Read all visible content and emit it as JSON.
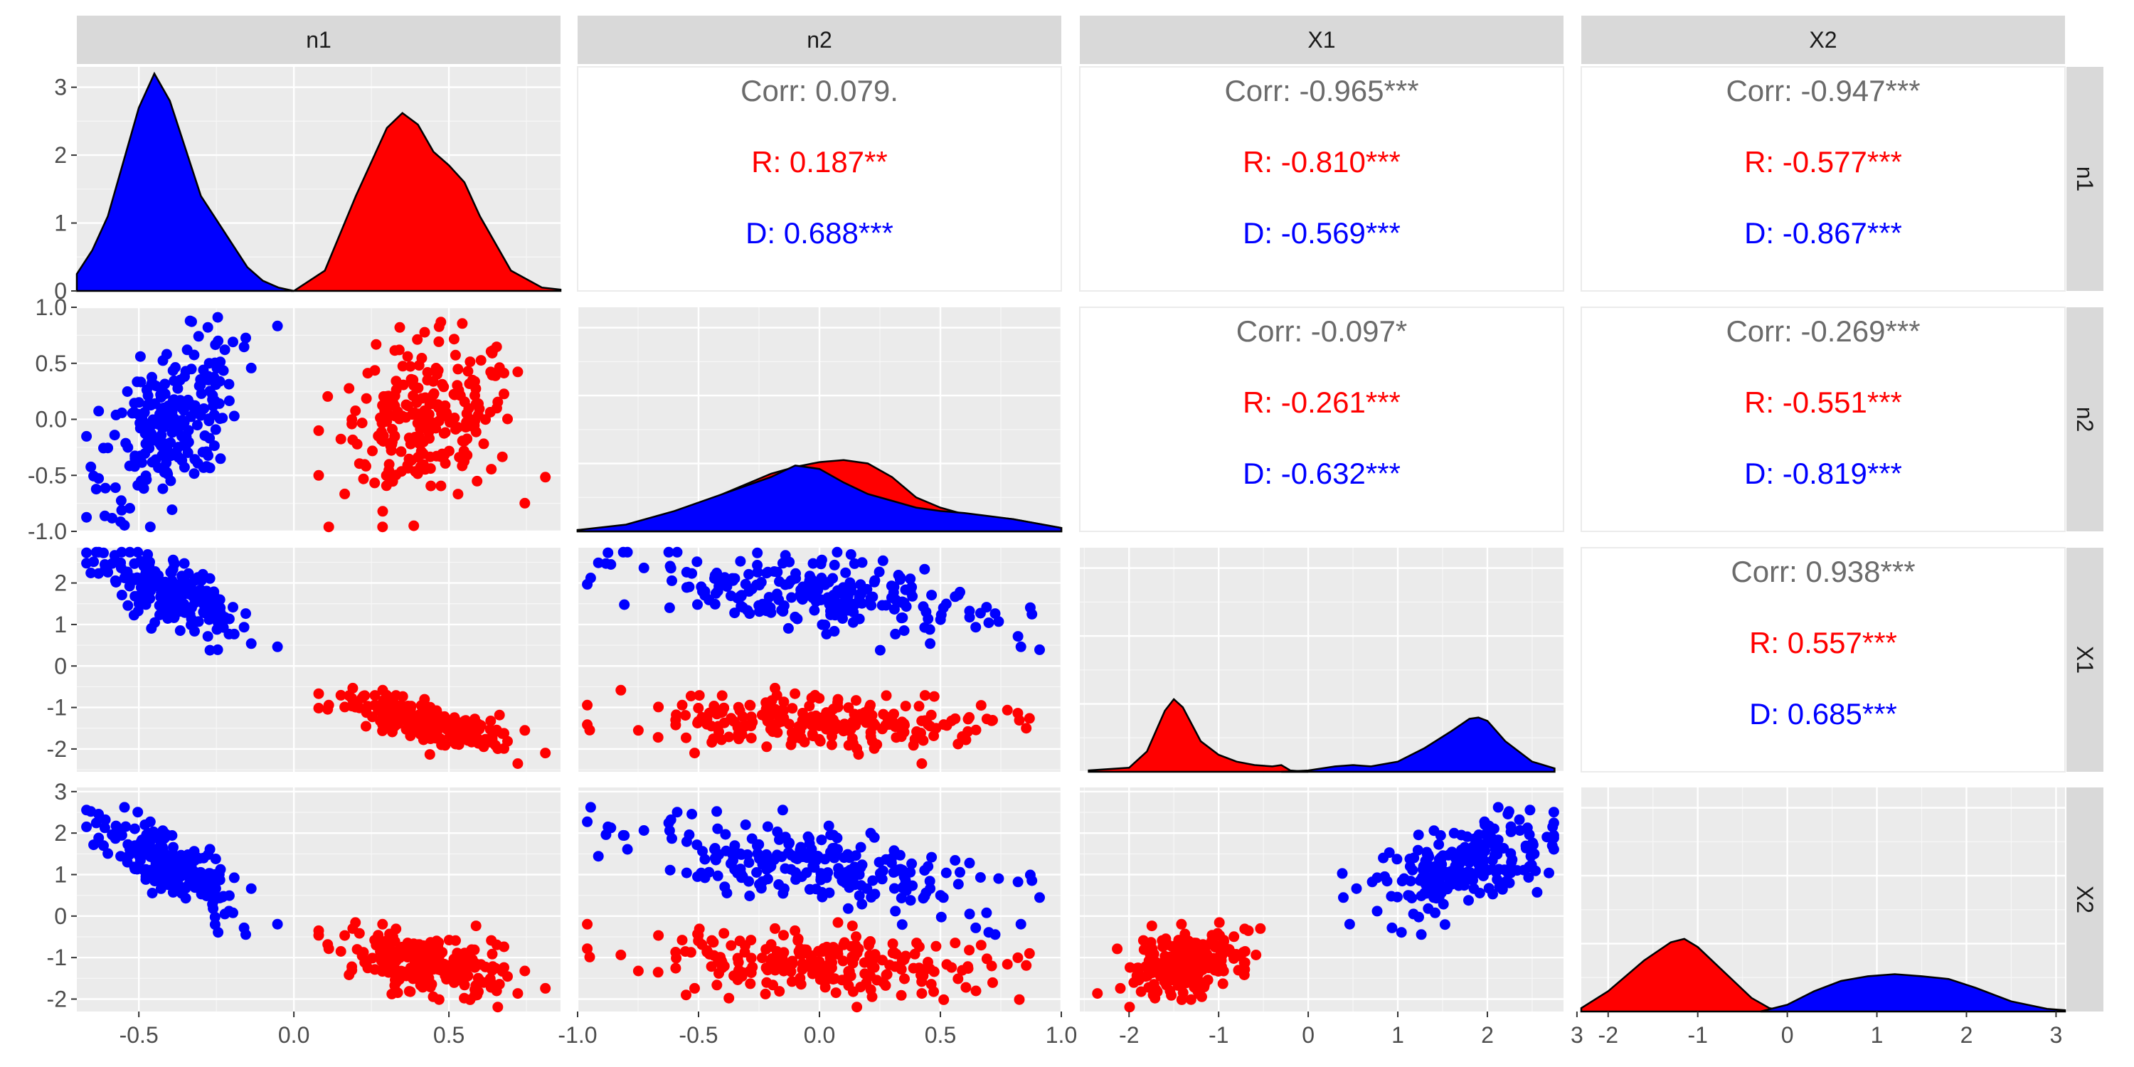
{
  "chart_data": {
    "type": "scatter",
    "variables": [
      "n1",
      "n2",
      "X1",
      "X2"
    ],
    "groups": [
      {
        "name": "R",
        "color": "#ff0000"
      },
      {
        "name": "D",
        "color": "#0000ff"
      }
    ],
    "ranges": {
      "n1": [
        -0.7,
        0.86
      ],
      "n2": [
        -1.0,
        1.0
      ],
      "X1": [
        -2.55,
        2.85
      ],
      "X2": [
        -2.3,
        3.1
      ]
    },
    "ticks": {
      "n1": [
        "-0.5",
        "0.0",
        "0.5"
      ],
      "n2": [
        "-1.0",
        "-0.5",
        "0.0",
        "0.5",
        "1.0"
      ],
      "X1": [
        "-2",
        "-1",
        "0",
        "1",
        "2",
        "3"
      ],
      "X2": [
        "-2",
        "-1",
        "0",
        "1",
        "2",
        "3"
      ]
    },
    "density_axis": {
      "ticks": [
        "0",
        "1",
        "2",
        "3"
      ],
      "max": 3.3
    },
    "densities": {
      "n1": {
        "R": {
          "x": [
            0.0,
            0.1,
            0.2,
            0.3,
            0.35,
            0.4,
            0.45,
            0.5,
            0.55,
            0.6,
            0.7,
            0.8,
            0.86
          ],
          "y": [
            0,
            0.3,
            1.4,
            2.4,
            2.62,
            2.45,
            2.05,
            1.85,
            1.6,
            1.1,
            0.3,
            0.05,
            0.02
          ]
        },
        "D": {
          "x": [
            -0.7,
            -0.65,
            -0.6,
            -0.55,
            -0.5,
            -0.45,
            -0.4,
            -0.35,
            -0.3,
            -0.25,
            -0.2,
            -0.15,
            -0.1,
            -0.05,
            0.0
          ],
          "y": [
            0.25,
            0.6,
            1.1,
            1.9,
            2.7,
            3.2,
            2.8,
            2.1,
            1.4,
            1.05,
            0.7,
            0.35,
            0.15,
            0.05,
            0
          ]
        }
      },
      "n2": {
        "R": {
          "x": [
            -1.0,
            -0.8,
            -0.6,
            -0.4,
            -0.2,
            -0.1,
            0.0,
            0.1,
            0.2,
            0.3,
            0.4,
            0.5,
            0.6,
            0.8,
            1.0
          ],
          "y": [
            0.02,
            0.06,
            0.25,
            0.55,
            0.85,
            0.95,
            1.02,
            1.05,
            1.0,
            0.8,
            0.5,
            0.35,
            0.25,
            0.18,
            0.05
          ]
        },
        "D": {
          "x": [
            -1.0,
            -0.8,
            -0.6,
            -0.4,
            -0.2,
            -0.1,
            0.0,
            0.1,
            0.2,
            0.3,
            0.4,
            0.5,
            0.6,
            0.8,
            1.0
          ],
          "y": [
            0.02,
            0.1,
            0.3,
            0.55,
            0.8,
            0.97,
            0.92,
            0.72,
            0.55,
            0.45,
            0.35,
            0.3,
            0.27,
            0.18,
            0.05
          ]
        }
      },
      "X1": {
        "R": {
          "x": [
            -2.45,
            -2.0,
            -1.8,
            -1.6,
            -1.5,
            -1.4,
            -1.2,
            -1.0,
            -0.8,
            -0.6,
            -0.4,
            -0.3,
            -0.2,
            0.0
          ],
          "y": [
            0.02,
            0.06,
            0.3,
            0.9,
            1.07,
            0.95,
            0.45,
            0.25,
            0.15,
            0.1,
            0.08,
            0.1,
            0.02,
            0
          ]
        },
        "D": {
          "x": [
            -0.3,
            0.0,
            0.3,
            0.5,
            0.7,
            1.0,
            1.3,
            1.6,
            1.8,
            1.9,
            2.0,
            2.2,
            2.5,
            2.75
          ],
          "y": [
            0,
            0.02,
            0.08,
            0.1,
            0.08,
            0.15,
            0.35,
            0.6,
            0.78,
            0.8,
            0.75,
            0.45,
            0.15,
            0.05
          ]
        }
      },
      "X2": {
        "R": {
          "x": [
            -2.3,
            -2.0,
            -1.6,
            -1.3,
            -1.15,
            -1.0,
            -0.8,
            -0.6,
            -0.4,
            -0.2,
            0.0
          ],
          "y": [
            0.05,
            0.3,
            0.75,
            1.02,
            1.07,
            0.95,
            0.7,
            0.45,
            0.2,
            0.05,
            0
          ]
        },
        "D": {
          "x": [
            -0.3,
            0.0,
            0.3,
            0.6,
            0.9,
            1.2,
            1.5,
            1.8,
            2.1,
            2.5,
            2.9,
            3.1
          ],
          "y": [
            0,
            0.1,
            0.3,
            0.45,
            0.52,
            0.55,
            0.52,
            0.48,
            0.35,
            0.15,
            0.04,
            0.02
          ]
        }
      }
    },
    "correlations": {
      "n1|n2": {
        "corr": "Corr: 0.079.",
        "R": "R: 0.187**",
        "D": "D: 0.688***"
      },
      "n1|X1": {
        "corr": "Corr: -0.965***",
        "R": "R: -0.810***",
        "D": "D: -0.569***"
      },
      "n1|X2": {
        "corr": "Corr: -0.947***",
        "R": "R: -0.577***",
        "D": "D: -0.867***"
      },
      "n2|X1": {
        "corr": "Corr: -0.097*",
        "R": "R: -0.261***",
        "D": "D: -0.632***"
      },
      "n2|X2": {
        "corr": "Corr: -0.269***",
        "R": "R: -0.551***",
        "D": "D: -0.819***"
      },
      "X1|X2": {
        "corr": "Corr: 0.938***",
        "R": "R: 0.557***",
        "D": "D: 0.685***"
      }
    },
    "point_clouds": {
      "R": {
        "n": 230,
        "n1_mean": 0.43,
        "n1_sd": 0.14,
        "n2_mean": -0.01,
        "n2_sd": 0.35
      },
      "D": {
        "n": 230,
        "n1_mean": -0.4,
        "n1_sd": 0.11,
        "n2_mean": -0.02,
        "n2_sd": 0.33
      }
    },
    "annotation_colors": {
      "corr": "#6b6b6b",
      "R": "#ff0000",
      "D": "#0000ff"
    }
  }
}
